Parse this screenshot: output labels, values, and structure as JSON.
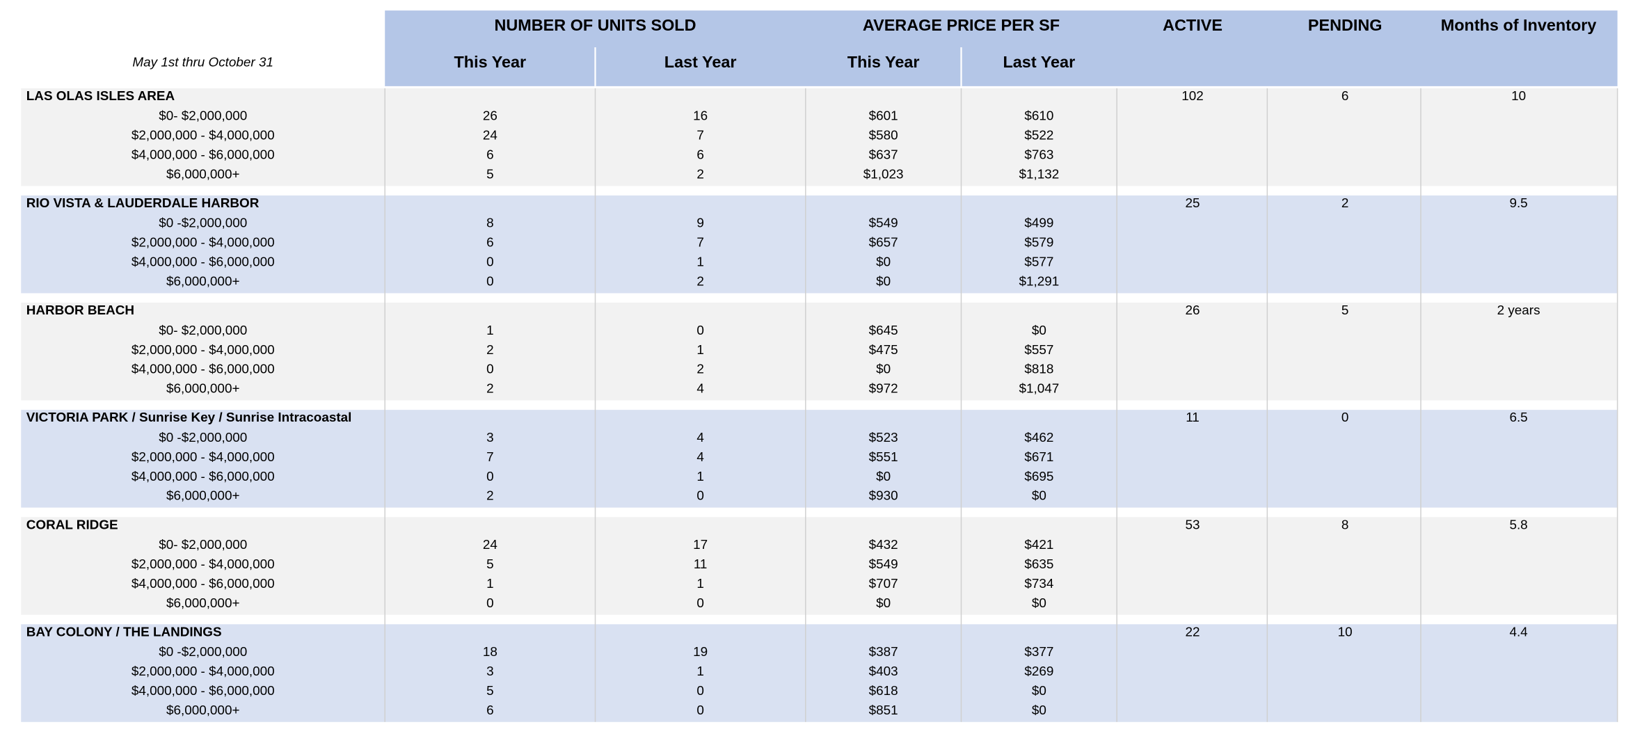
{
  "header": {
    "date_range": "May 1st thru October 31",
    "groups": [
      "NUMBER OF UNITS SOLD",
      "AVERAGE PRICE PER SF",
      "ACTIVE",
      "PENDING",
      "Months of Inventory"
    ],
    "subheaders": [
      "This Year",
      "Last Year",
      "This Year",
      "Last Year"
    ]
  },
  "sections": [
    {
      "name": "LAS OLAS ISLES AREA",
      "active": 102,
      "pending": 6,
      "months_of_inventory": 10,
      "rows": [
        [
          "$0- $2,000,000",
          26,
          16,
          "$601",
          "$610"
        ],
        [
          "$2,000,000 - $4,000,000",
          24,
          7,
          "$580",
          "$522"
        ],
        [
          "$4,000,000 - $6,000,000",
          6,
          6,
          "$637",
          "$763"
        ],
        [
          "$6,000,000+",
          5,
          2,
          "$1,023",
          "$1,132"
        ]
      ]
    },
    {
      "name": "RIO VISTA & LAUDERDALE HARBOR",
      "active": 25,
      "pending": 2,
      "months_of_inventory": 9.5,
      "rows": [
        [
          "$0 -$2,000,000",
          8,
          9,
          "$549",
          "$499"
        ],
        [
          "$2,000,000 - $4,000,000",
          6,
          7,
          "$657",
          "$579"
        ],
        [
          "$4,000,000 - $6,000,000",
          0,
          1,
          "$0",
          "$577"
        ],
        [
          "$6,000,000+",
          0,
          2,
          "$0",
          "$1,291"
        ]
      ]
    },
    {
      "name": "HARBOR BEACH",
      "active": 26,
      "pending": 5,
      "months_of_inventory": "2 years",
      "rows": [
        [
          "$0- $2,000,000",
          1,
          0,
          "$645",
          "$0"
        ],
        [
          "$2,000,000 - $4,000,000",
          2,
          1,
          "$475",
          "$557"
        ],
        [
          "$4,000,000 - $6,000,000",
          0,
          2,
          "$0",
          "$818"
        ],
        [
          "$6,000,000+",
          2,
          4,
          "$972",
          "$1,047"
        ]
      ]
    },
    {
      "name": "VICTORIA PARK / Sunrise Key / Sunrise Intracoastal",
      "active": 11,
      "pending": 0,
      "months_of_inventory": 6.5,
      "rows": [
        [
          "$0 -$2,000,000",
          3,
          4,
          "$523",
          "$462"
        ],
        [
          "$2,000,000 - $4,000,000",
          7,
          4,
          "$551",
          "$671"
        ],
        [
          "$4,000,000 - $6,000,000",
          0,
          1,
          "$0",
          "$695"
        ],
        [
          "$6,000,000+",
          2,
          0,
          "$930",
          "$0"
        ]
      ]
    },
    {
      "name": "CORAL RIDGE",
      "active": 53,
      "pending": 8,
      "months_of_inventory": 5.8,
      "rows": [
        [
          "$0- $2,000,000",
          24,
          17,
          "$432",
          "$421"
        ],
        [
          "$2,000,000 - $4,000,000",
          5,
          11,
          "$549",
          "$635"
        ],
        [
          "$4,000,000 - $6,000,000",
          1,
          1,
          "$707",
          "$734"
        ],
        [
          "$6,000,000+",
          0,
          0,
          "$0",
          "$0"
        ]
      ]
    },
    {
      "name": "BAY COLONY / THE LANDINGS",
      "active": 22,
      "pending": 10,
      "months_of_inventory": 4.4,
      "rows": [
        [
          "$0 -$2,000,000",
          18,
          19,
          "$387",
          "$377"
        ],
        [
          "$2,000,000 - $4,000,000",
          3,
          1,
          "$403",
          "$269"
        ],
        [
          "$4,000,000 - $6,000,000",
          5,
          0,
          "$618",
          "$0"
        ],
        [
          "$6,000,000+",
          6,
          0,
          "$851",
          "$0"
        ]
      ]
    }
  ]
}
